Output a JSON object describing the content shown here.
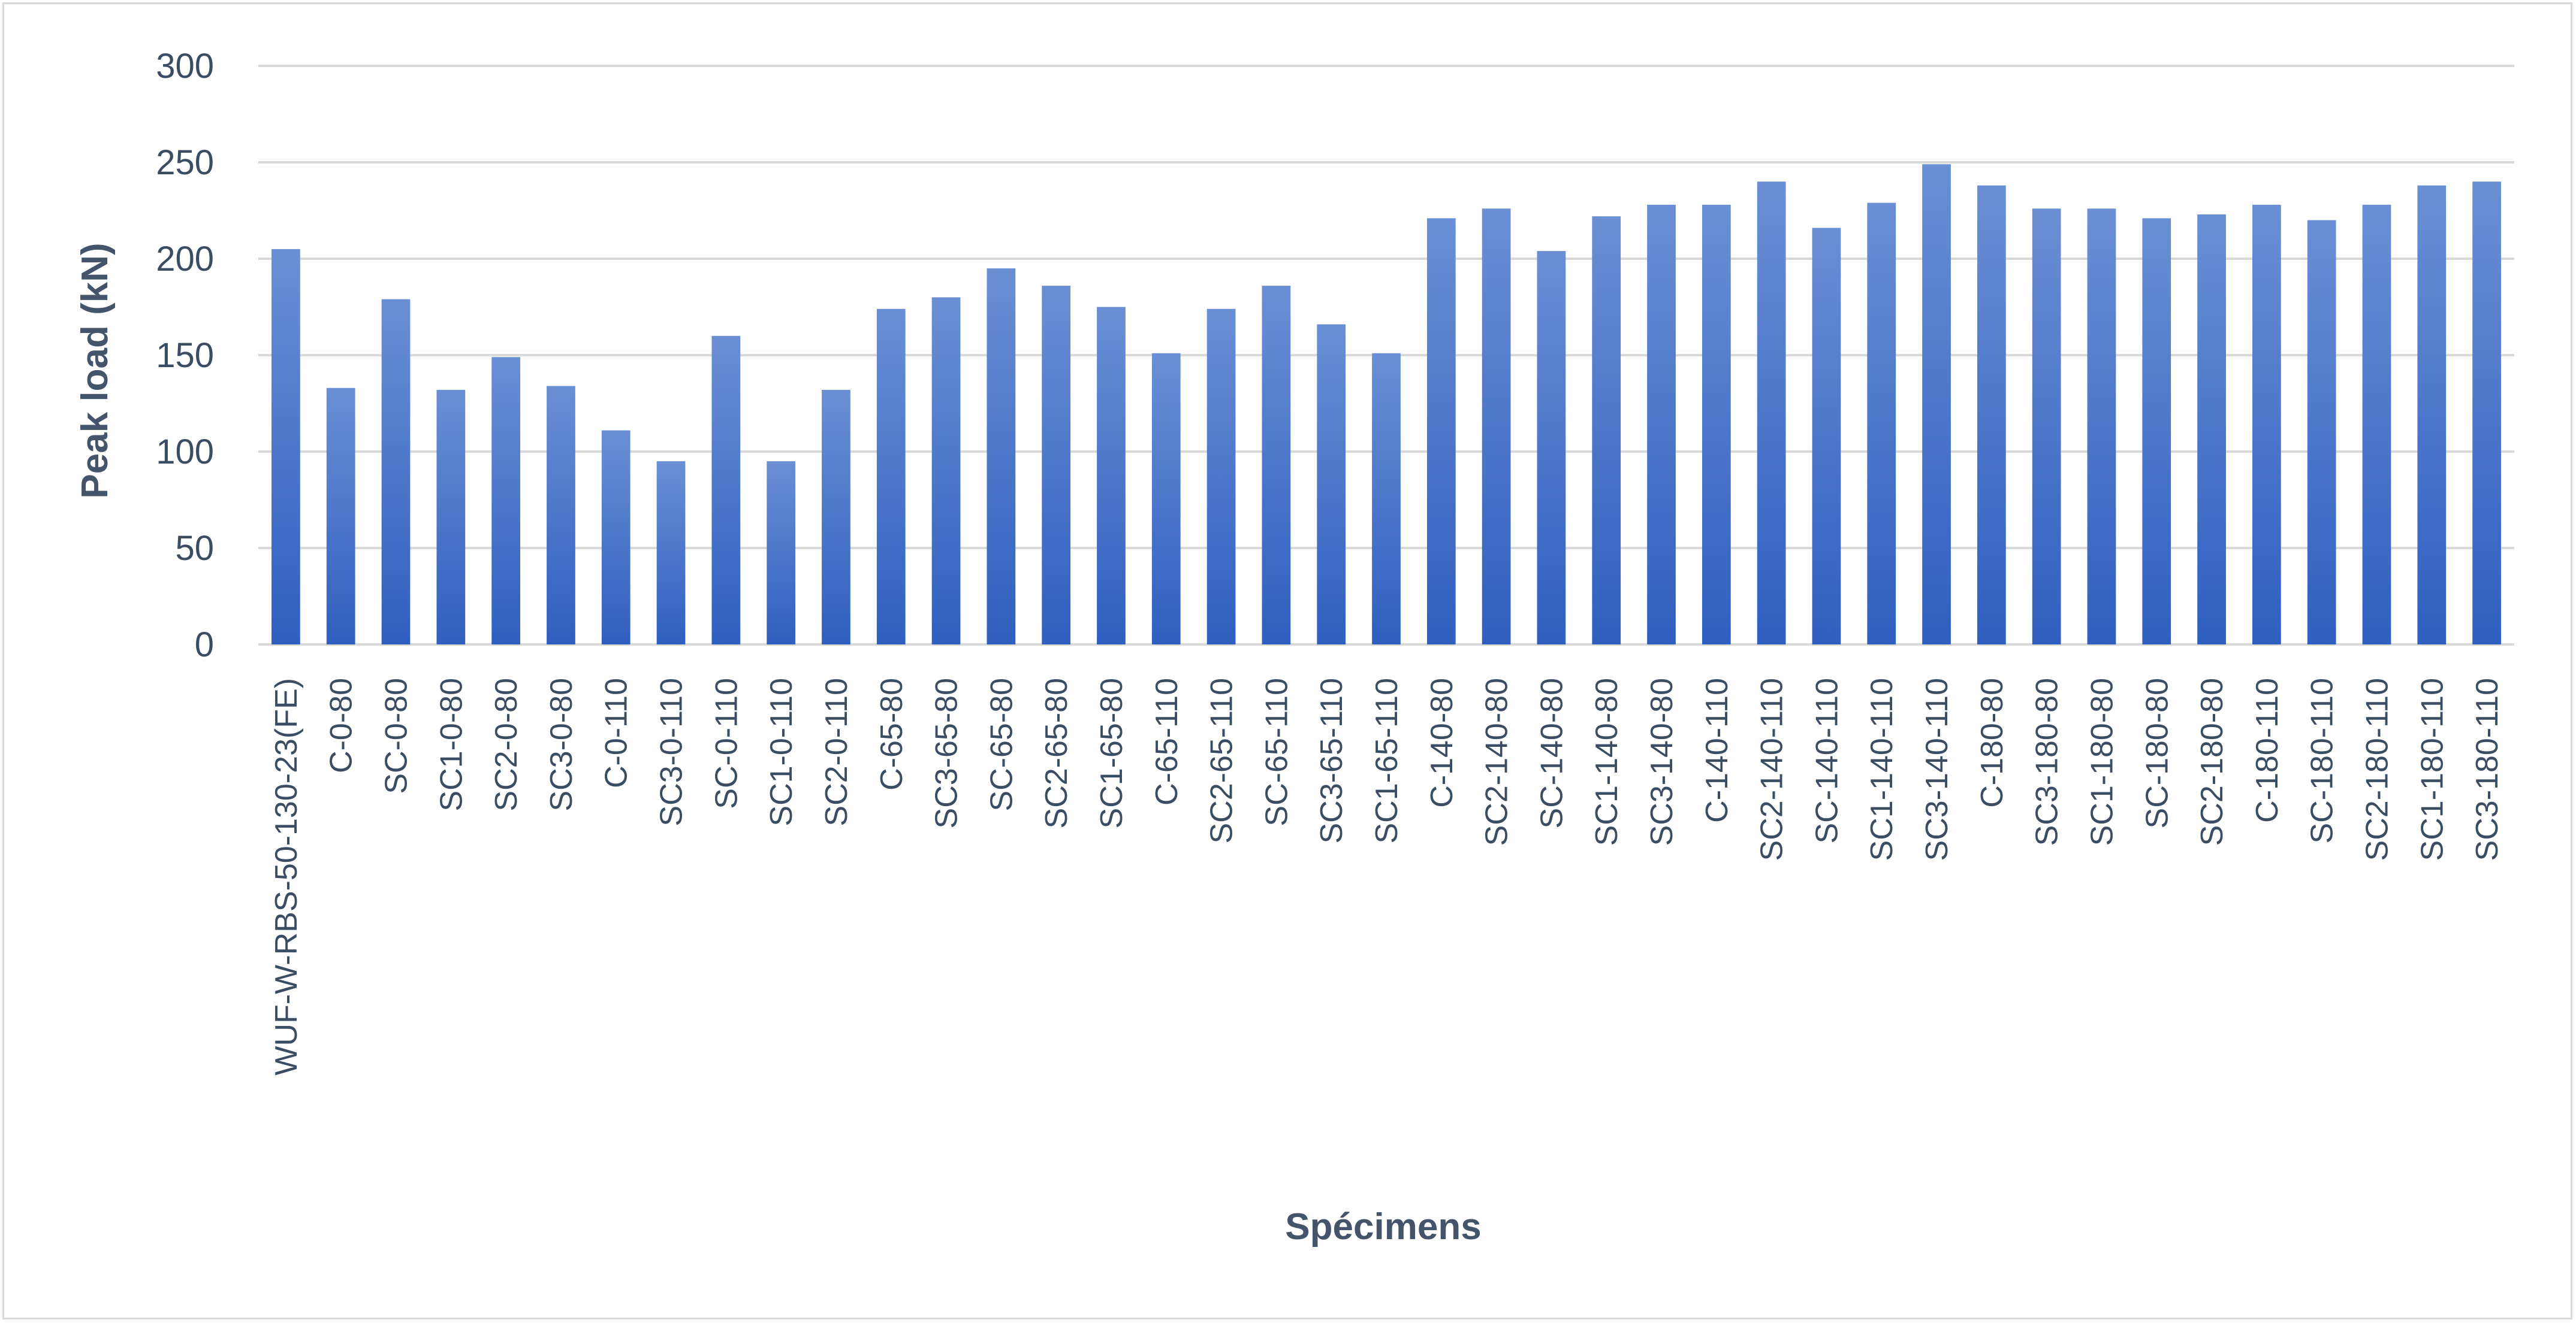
{
  "chart_data": {
    "type": "bar",
    "xlabel": "Spécimens",
    "ylabel": "Peak load (kN)",
    "ylim": [
      0,
      300
    ],
    "yticks": [
      0,
      50,
      100,
      150,
      200,
      250,
      300
    ],
    "grid": true,
    "legend": "none",
    "bar_color_top": "#6a8fd4",
    "bar_color_bottom": "#2f5fbf",
    "grid_color": "#d9d9d9",
    "categories": [
      "WUF-W-RBS-50-130-23(FE)",
      "C-0-80",
      "SC-0-80",
      "SC1-0-80",
      "SC2-0-80",
      "SC3-0-80",
      "C-0-110",
      "SC3-0-110",
      "SC-0-110",
      "SC1-0-110",
      "SC2-0-110",
      "C-65-80",
      "SC3-65-80",
      "SC-65-80",
      "SC2-65-80",
      "SC1-65-80",
      "C-65-110",
      "SC2-65-110",
      "SC-65-110",
      "SC3-65-110",
      "SC1-65-110",
      "C-140-80",
      "SC2-140-80",
      "SC-140-80",
      "SC1-140-80",
      "SC3-140-80",
      "C-140-110",
      "SC2-140-110",
      "SC-140-110",
      "SC1-140-110",
      "SC3-140-110",
      "C-180-80",
      "SC3-180-80",
      "SC1-180-80",
      "SC-180-80",
      "SC2-180-80",
      "C-180-110",
      "SC-180-110",
      "SC2-180-110",
      "SC1-180-110",
      "SC3-180-110"
    ],
    "values": [
      205,
      133,
      179,
      132,
      149,
      134,
      111,
      95,
      160,
      95,
      132,
      174,
      180,
      195,
      186,
      175,
      151,
      174,
      186,
      166,
      151,
      221,
      226,
      204,
      222,
      228,
      228,
      240,
      216,
      229,
      249,
      238,
      226,
      226,
      221,
      223,
      228,
      220,
      228,
      238,
      240
    ]
  }
}
